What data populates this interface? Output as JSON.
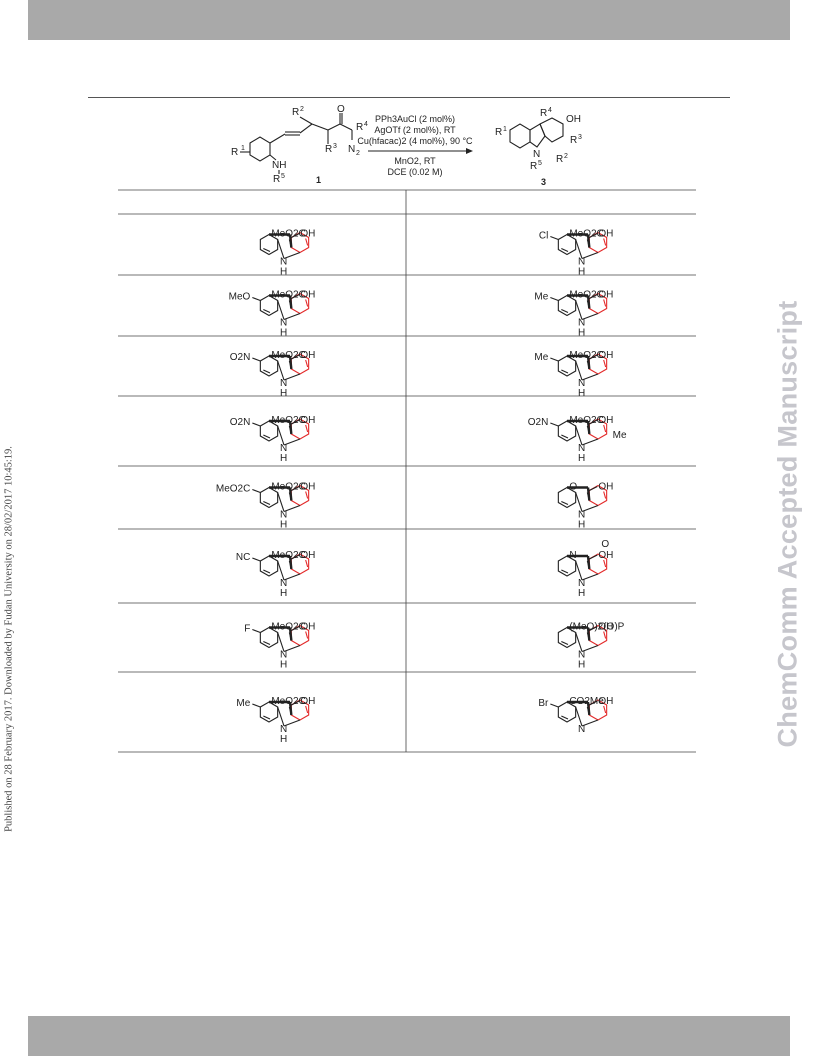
{
  "side_text_left": "Published on 28 February 2017. Downloaded by Fudan University on 28/02/2017 10:45:19.",
  "side_text_right": "ChemComm Accepted Manuscript",
  "scheme": {
    "reagents": [
      "PPh3AuCl (2 mol%)",
      "AgOTf (2 mol%), RT",
      "Cu(hfacac)2 (4 mol%), 90 °C"
    ],
    "conditions": [
      "MnO2, RT",
      "DCE (0.02 M)"
    ],
    "substrate_label": "1",
    "product_label": "3"
  },
  "table": {
    "rows": [
      {
        "left": {
          "top": "MeO2C",
          "oh": "OH",
          "nh": "N",
          "h": "H"
        },
        "right": {
          "top": "MeO2C",
          "oh": "OH",
          "sub": "Cl",
          "nh": "N",
          "h": "H"
        }
      },
      {
        "left": {
          "top": "MeO2C",
          "oh": "OH",
          "sub": "MeO",
          "nh": "N",
          "h": "H"
        },
        "right": {
          "top": "MeO2C",
          "oh": "OH",
          "sub": "Me",
          "nh": "N",
          "h": "H"
        }
      },
      {
        "left": {
          "top": "MeO2C",
          "oh": "OH",
          "sub": "O2N",
          "nh": "N",
          "h": "H"
        },
        "right": {
          "top": "MeO2C",
          "oh": "OH",
          "sub": "Me",
          "nh": "N",
          "h": "H"
        }
      },
      {
        "left": {
          "top": "MeO2C",
          "oh": "OH",
          "sub": "O2N",
          "nh": "N",
          "h": "H"
        },
        "right": {
          "top": "MeO2C",
          "oh": "OH",
          "sub": "O2N",
          "sub2": "Me",
          "nh": "N",
          "h": "H"
        }
      },
      {
        "left": {
          "top": "MeO2C",
          "oh": "OH",
          "sub": "MeO2C",
          "nh": "N",
          "h": "H"
        },
        "right": {
          "top": "O",
          "oh": "OH",
          "nh": "N",
          "h": "H"
        }
      },
      {
        "left": {
          "top": "MeO2C",
          "oh": "OH",
          "sub": "NC",
          "nh": "N",
          "h": "H"
        },
        "right": {
          "top": "N",
          "o": "O",
          "oh": "OH",
          "nh": "N",
          "h": "H"
        }
      },
      {
        "left": {
          "top": "MeO2C",
          "oh": "OH",
          "sub": "F",
          "nh": "N",
          "h": "H"
        },
        "right": {
          "top": "(MeO)2(O)P",
          "oh": "OH",
          "nh": "N",
          "h": "H"
        }
      },
      {
        "left": {
          "top": "MeO2C",
          "oh": "OH",
          "sub": "Me",
          "nh": "N",
          "h": "H"
        },
        "right": {
          "top": "CO2Me",
          "oh": "OH",
          "nh": "N",
          "sub": "Br"
        }
      }
    ]
  }
}
